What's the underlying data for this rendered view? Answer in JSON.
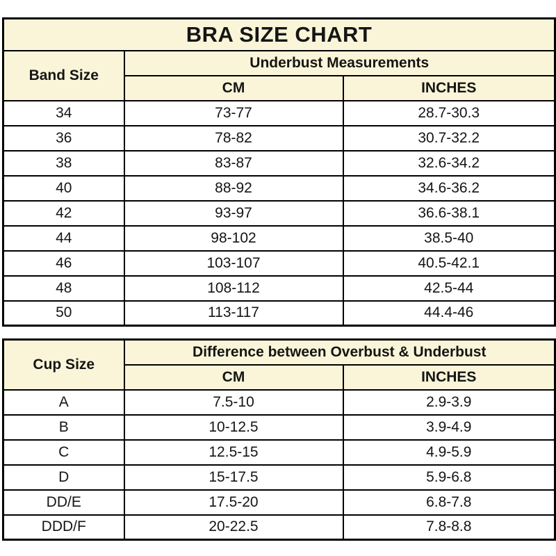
{
  "colors": {
    "header_bg": "#FAF5D8",
    "border": "#000000",
    "text": "#151515",
    "row_bg": "#FFFFFF"
  },
  "chart_data": [
    {
      "type": "table",
      "title": "BRA SIZE CHART",
      "corner_header": "Band Size",
      "group_header": "Underbust Measurements",
      "columns": [
        "CM",
        "INCHES"
      ],
      "rows": [
        [
          "34",
          "73-77",
          "28.7-30.3"
        ],
        [
          "36",
          "78-82",
          "30.7-32.2"
        ],
        [
          "38",
          "83-87",
          "32.6-34.2"
        ],
        [
          "40",
          "88-92",
          "34.6-36.2"
        ],
        [
          "42",
          "93-97",
          "36.6-38.1"
        ],
        [
          "44",
          "98-102",
          "38.5-40"
        ],
        [
          "46",
          "103-107",
          "40.5-42.1"
        ],
        [
          "48",
          "108-112",
          "42.5-44"
        ],
        [
          "50",
          "113-117",
          "44.4-46"
        ]
      ]
    },
    {
      "type": "table",
      "corner_header": "Cup Size",
      "group_header": "Difference between Overbust & Underbust",
      "columns": [
        "CM",
        "INCHES"
      ],
      "rows": [
        [
          "A",
          "7.5-10",
          "2.9-3.9"
        ],
        [
          "B",
          "10-12.5",
          "3.9-4.9"
        ],
        [
          "C",
          "12.5-15",
          "4.9-5.9"
        ],
        [
          "D",
          "15-17.5",
          "5.9-6.8"
        ],
        [
          "DD/E",
          "17.5-20",
          "6.8-7.8"
        ],
        [
          "DDD/F",
          "20-22.5",
          "7.8-8.8"
        ]
      ]
    }
  ]
}
